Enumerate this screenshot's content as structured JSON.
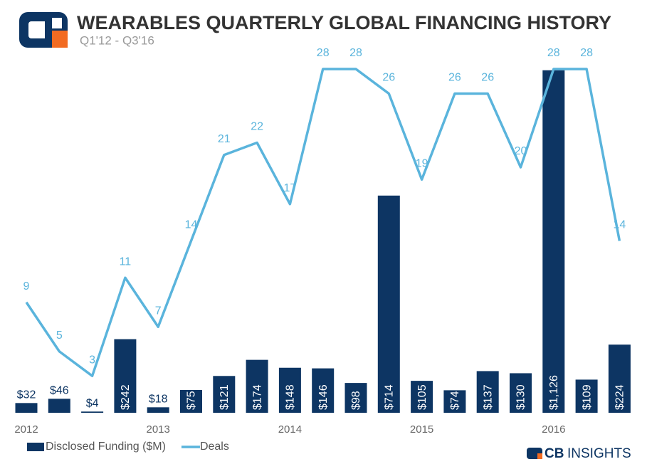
{
  "chart_data": {
    "type": "bar-line",
    "title": "WEARABLES QUARTERLY GLOBAL FINANCING HISTORY",
    "subtitle": "Q1'12 - Q3'16",
    "categories": [
      "2012",
      null,
      null,
      null,
      "2013",
      null,
      null,
      null,
      "2014",
      null,
      null,
      null,
      "2015",
      null,
      null,
      null,
      "2016",
      null,
      null
    ],
    "series": [
      {
        "name": "Disclosed Funding ($M)",
        "color": "#0d3563",
        "kind": "bar",
        "values": [
          32,
          46,
          4,
          242,
          18,
          75,
          121,
          174,
          148,
          146,
          98,
          714,
          105,
          74,
          137,
          130,
          1126,
          109,
          224
        ],
        "value_labels": [
          "$32",
          "$46",
          "$4",
          "$242",
          "$18",
          "$75",
          "$121",
          "$174",
          "$148",
          "$146",
          "$98",
          "$714",
          "$105",
          "$74",
          "$137",
          "$130",
          "$1,126",
          "$109",
          "$224"
        ]
      },
      {
        "name": "Deals",
        "color": "#5ab4dc",
        "kind": "line",
        "axis": "y2",
        "values": [
          9,
          5,
          3,
          11,
          7,
          14,
          21,
          22,
          17,
          28,
          28,
          26,
          19,
          26,
          26,
          20,
          28,
          28,
          14
        ]
      }
    ],
    "ylim": [
      0,
      1130
    ],
    "y2lim": [
      0,
      28
    ],
    "legend": "bottom-left"
  },
  "logo_text": [
    "CB",
    "INSIGHTS"
  ]
}
